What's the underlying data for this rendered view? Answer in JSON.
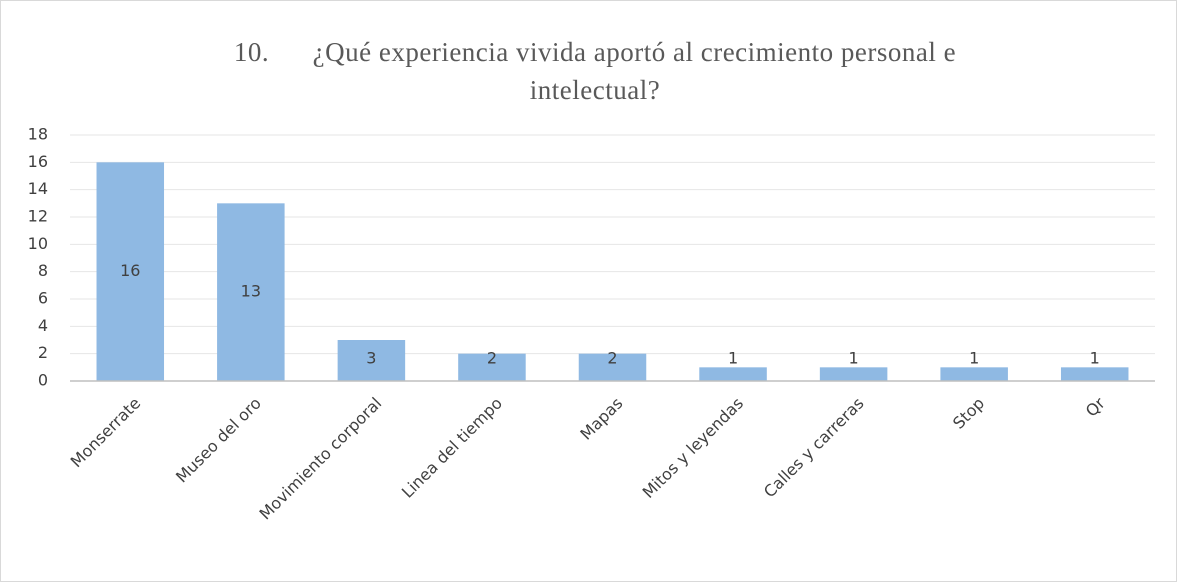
{
  "chart_data": {
    "type": "bar",
    "title": [
      "10.      ¿Qué experiencia vivida aportó al crecimiento personal e",
      "intelectual?"
    ],
    "categories": [
      "Monserrate",
      "Museo del oro",
      "Movimiento corporal",
      "Linea del tiempo",
      "Mapas",
      "Mitos y leyendas",
      "Calles y carreras",
      "Stop",
      "Qr"
    ],
    "values": [
      16,
      13,
      3,
      2,
      2,
      1,
      1,
      1,
      1
    ],
    "color": "#8fb9e3",
    "ylim": [
      0,
      18
    ],
    "yticks": [
      0,
      2,
      4,
      6,
      8,
      10,
      12,
      14,
      16,
      18
    ],
    "grid": true
  }
}
